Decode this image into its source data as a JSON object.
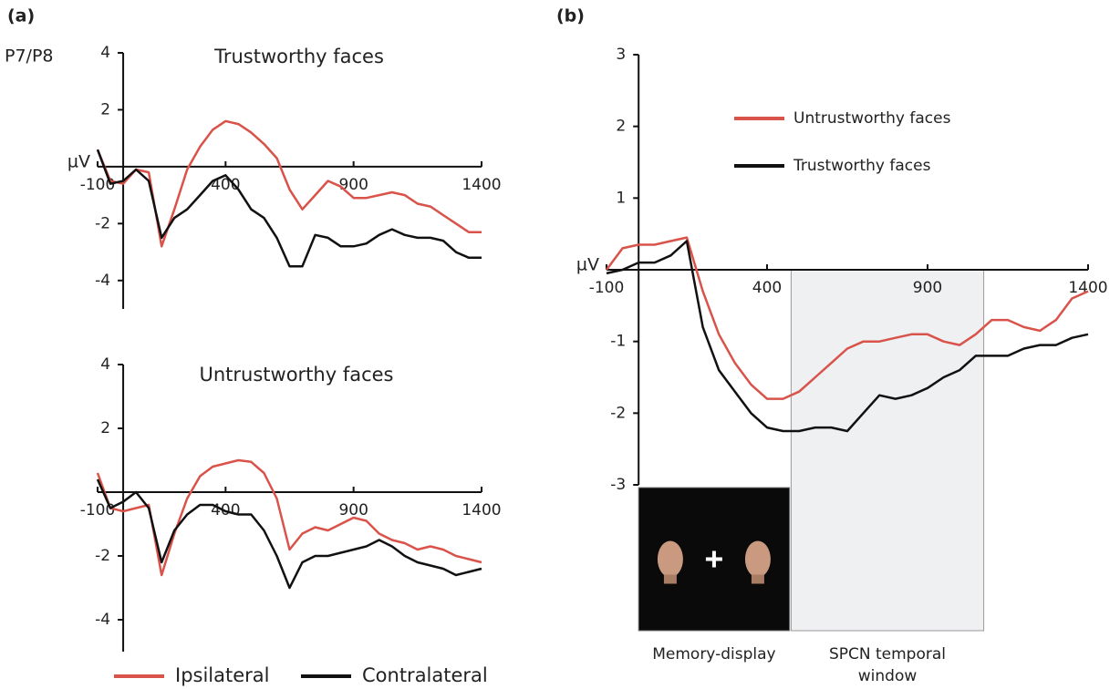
{
  "panel_labels": [
    "(a)",
    "(b)"
  ],
  "channel": "P7/P8",
  "chart_data": [
    {
      "type": "line",
      "title": "Trustworthy faces",
      "ylabel": "µV",
      "x": [
        -100,
        -50,
        0,
        50,
        100,
        150,
        200,
        250,
        300,
        350,
        400,
        450,
        500,
        550,
        600,
        650,
        700,
        750,
        800,
        850,
        900,
        950,
        1000,
        1050,
        1100,
        1150,
        1200,
        1250,
        1300,
        1350,
        1400
      ],
      "xlim": [
        -100,
        1400
      ],
      "xticks": [
        -100,
        400,
        900,
        1400
      ],
      "ylim": [
        -5,
        4
      ],
      "yticks": [
        4,
        2,
        -2,
        -4
      ],
      "series": [
        {
          "name": "Ipsilateral",
          "color": "#d9534a",
          "values": [
            0.6,
            -0.5,
            -0.6,
            -0.1,
            -0.2,
            -2.8,
            -1.5,
            -0.1,
            0.7,
            1.3,
            1.6,
            1.5,
            1.2,
            0.8,
            0.3,
            -0.8,
            -1.5,
            -1.0,
            -0.5,
            -0.7,
            -1.1,
            -1.1,
            -1.0,
            -0.9,
            -1.0,
            -1.3,
            -1.4,
            -1.7,
            -2.0,
            -2.3,
            -2.3
          ]
        },
        {
          "name": "Contralateral",
          "color": "#111111",
          "values": [
            0.6,
            -0.6,
            -0.5,
            -0.1,
            -0.5,
            -2.5,
            -1.8,
            -1.5,
            -1.0,
            -0.5,
            -0.3,
            -0.8,
            -1.5,
            -1.8,
            -2.5,
            -3.5,
            -3.5,
            -2.4,
            -2.5,
            -2.8,
            -2.8,
            -2.7,
            -2.4,
            -2.2,
            -2.4,
            -2.5,
            -2.5,
            -2.6,
            -3.0,
            -3.2,
            -3.2
          ]
        }
      ]
    },
    {
      "type": "line",
      "title": "Untrustworthy faces",
      "x": [
        -100,
        -50,
        0,
        50,
        100,
        150,
        200,
        250,
        300,
        350,
        400,
        450,
        500,
        550,
        600,
        650,
        700,
        750,
        800,
        850,
        900,
        950,
        1000,
        1050,
        1100,
        1150,
        1200,
        1250,
        1300,
        1350,
        1400
      ],
      "xlim": [
        -100,
        1400
      ],
      "xticks": [
        -100,
        400,
        900,
        1400
      ],
      "ylim": [
        -5,
        4
      ],
      "yticks": [
        4,
        2,
        -2,
        -4
      ],
      "series": [
        {
          "color": "#d9534a",
          "values": [
            0.6,
            -0.5,
            -0.6,
            -0.5,
            -0.4,
            -2.6,
            -1.3,
            -0.2,
            0.5,
            0.8,
            0.9,
            1.0,
            0.95,
            0.6,
            -0.2,
            -1.8,
            -1.3,
            -1.1,
            -1.2,
            -1.0,
            -0.8,
            -0.9,
            -1.3,
            -1.5,
            -1.6,
            -1.8,
            -1.7,
            -1.8,
            -2.0,
            -2.1,
            -2.2
          ]
        },
        {
          "color": "#111111",
          "values": [
            0.4,
            -0.5,
            -0.3,
            0.0,
            -0.5,
            -2.2,
            -1.2,
            -0.7,
            -0.4,
            -0.4,
            -0.6,
            -0.7,
            -0.7,
            -1.2,
            -2.0,
            -3.0,
            -2.2,
            -2.0,
            -2.0,
            -1.9,
            -1.8,
            -1.7,
            -1.5,
            -1.7,
            -2.0,
            -2.2,
            -2.3,
            -2.4,
            -2.6,
            -2.5,
            -2.4
          ]
        }
      ]
    },
    {
      "type": "line",
      "ylabel": "µV",
      "x": [
        -100,
        -50,
        0,
        50,
        100,
        150,
        200,
        250,
        300,
        350,
        400,
        450,
        500,
        550,
        600,
        650,
        700,
        750,
        800,
        850,
        900,
        950,
        1000,
        1050,
        1100,
        1150,
        1200,
        1250,
        1300,
        1350,
        1400
      ],
      "xlim": [
        -100,
        1400
      ],
      "xticks": [
        -100,
        400,
        900,
        1400
      ],
      "ylim": [
        -3,
        3
      ],
      "yticks": [
        3,
        2,
        1,
        -1,
        -2,
        -3
      ],
      "window": {
        "xlim": [
          475,
          1075
        ],
        "label": [
          "SPCN temporal",
          "window"
        ]
      },
      "inset": {
        "xlim": [
          0,
          470
        ],
        "label": "Memory-display"
      },
      "series": [
        {
          "name": "Untrustworthy faces",
          "color": "#d9534a",
          "values": [
            0.0,
            0.3,
            0.35,
            0.35,
            0.4,
            0.45,
            -0.3,
            -0.9,
            -1.3,
            -1.6,
            -1.8,
            -1.8,
            -1.7,
            -1.5,
            -1.3,
            -1.1,
            -1.0,
            -1.0,
            -0.95,
            -0.9,
            -0.9,
            -1.0,
            -1.05,
            -0.9,
            -0.7,
            -0.7,
            -0.8,
            -0.85,
            -0.7,
            -0.4,
            -0.3
          ]
        },
        {
          "name": "Trustworthy faces",
          "color": "#111111",
          "values": [
            -0.05,
            0.0,
            0.1,
            0.1,
            0.2,
            0.4,
            -0.8,
            -1.4,
            -1.7,
            -2.0,
            -2.2,
            -2.25,
            -2.25,
            -2.2,
            -2.2,
            -2.25,
            -2.0,
            -1.75,
            -1.8,
            -1.75,
            -1.65,
            -1.5,
            -1.4,
            -1.2,
            -1.2,
            -1.2,
            -1.1,
            -1.05,
            -1.05,
            -0.95,
            -0.9
          ]
        }
      ]
    }
  ]
}
